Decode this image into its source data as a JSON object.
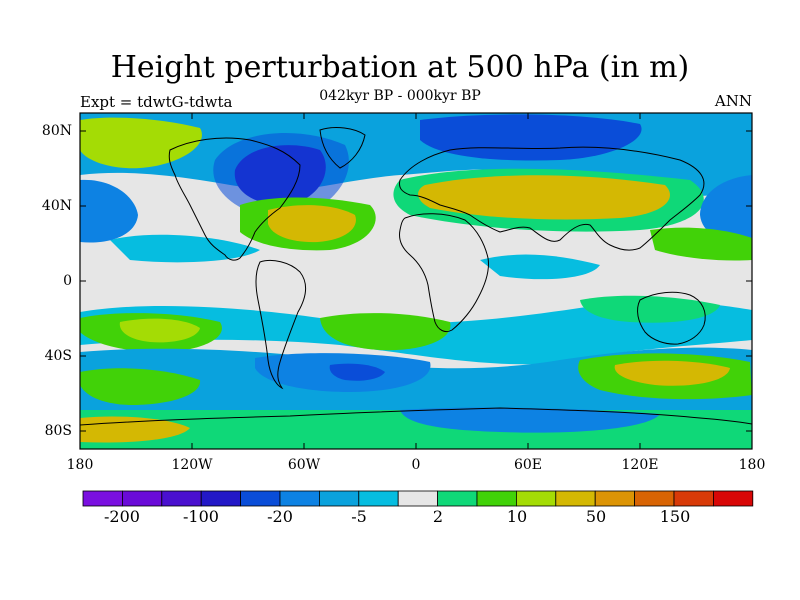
{
  "title": "Height perturbation at 500 hPa (in m)",
  "subtitle": "042kyr BP - 000kyr BP",
  "left_label": "Expt = tdwtG-tdwta",
  "right_label": "ANN",
  "y_ticks": [
    "80N",
    "40N",
    "0",
    "40S",
    "80S"
  ],
  "x_ticks": [
    "180",
    "120W",
    "60W",
    "0",
    "60E",
    "120E",
    "180"
  ],
  "colorbar": {
    "colors": [
      "#7a0fe0",
      "#6a0bd8",
      "#4a10cf",
      "#2318c7",
      "#0a4dd8",
      "#0d82e3",
      "#0aa2dd",
      "#06bde0",
      "#e6e6e6",
      "#0fd878",
      "#41d208",
      "#a4dc05",
      "#d4b803",
      "#dc9405",
      "#d86404",
      "#d83a08",
      "#d80707"
    ],
    "labels": [
      "-200",
      "-100",
      "-20",
      "-5",
      "2",
      "10",
      "50",
      "150"
    ]
  },
  "map": {
    "projection": "cylindrical-equidistant",
    "extent": {
      "lon": [
        -180,
        180
      ],
      "lat": [
        -90,
        90
      ]
    },
    "coastlines": "black outline"
  }
}
